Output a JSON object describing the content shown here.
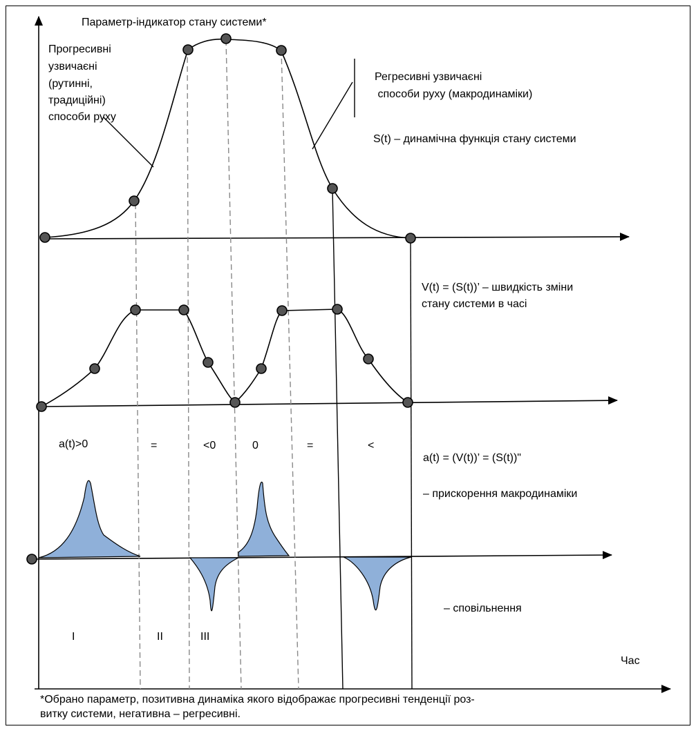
{
  "labels": {
    "y_axis_title": "Параметр-індикатор стану системи*",
    "progressive": [
      "Прогресивні",
      "узвичаєні",
      "(рутинні,",
      "традиційні)",
      "способи руху"
    ],
    "regressive": [
      "Регресивні узвичаєні",
      " способи руху (макродинаміки)"
    ],
    "s_func": "S(t) – динамічна функція стану системи",
    "v_func": [
      "V(t) = (S(t))’ – швидкість зміни",
      "стану системи в часі"
    ],
    "a_func": "a(t) = (V(t))’ = (S(t))\"",
    "accel": "– прискорення макродинаміки",
    "decel": "– сповільнення",
    "time": "Час",
    "footnote": [
      "*Обрано параметр, позитивна динаміка якого відображає прогресивні тенденції роз-",
      "витку системи, негативна – регресивні."
    ]
  },
  "signs": {
    "s1": "a(t)>0",
    "s2": "=",
    "s3": "<0",
    "s4": "0",
    "s5": "=",
    "s6": "<"
  },
  "phases": {
    "p1": "I",
    "p2": "II",
    "p3": "III"
  },
  "colors": {
    "fill": "#8fb0d9",
    "dashed": "#888888"
  }
}
